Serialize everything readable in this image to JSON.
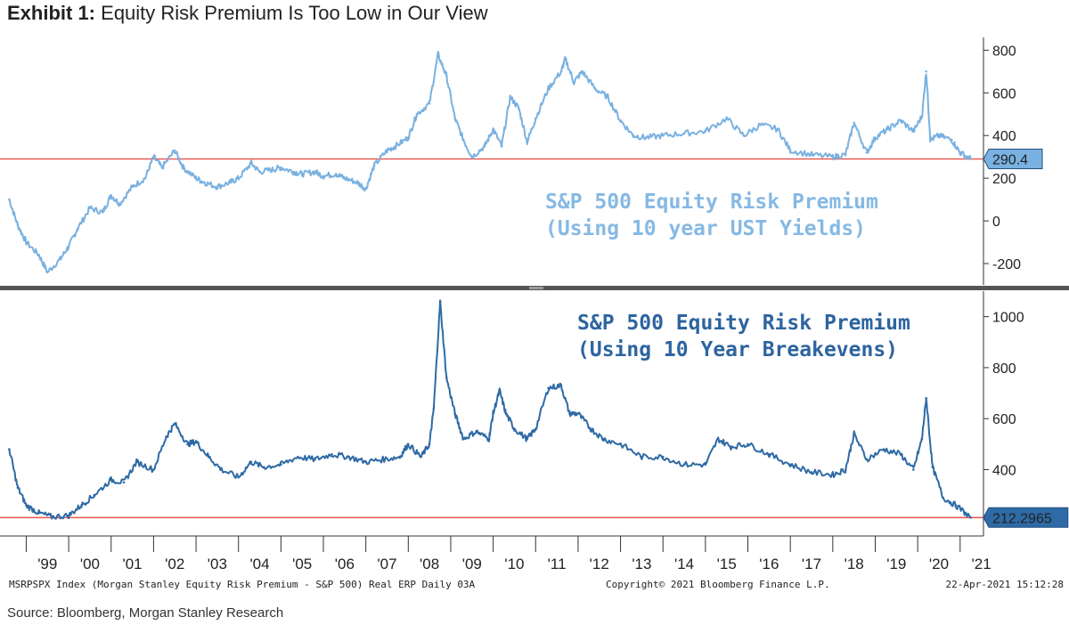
{
  "exhibit_label": "Exhibit 1:",
  "title": "Equity Risk Premium Is Too Low in Our View",
  "chart_data": [
    {
      "type": "line",
      "title_lines": [
        "S&P 500 Equity Risk Premium",
        "(Using 10 year UST Yields)"
      ],
      "series": [
        {
          "name": "S&P 500 Equity Risk Premium (Using 10 year UST Yields)",
          "color": "#79b1e0",
          "x": [
            1998.6,
            1998.8,
            1999.0,
            1999.3,
            1999.5,
            1999.8,
            2000.0,
            2000.2,
            2000.5,
            2000.8,
            2001.0,
            2001.2,
            2001.5,
            2001.8,
            2002.0,
            2002.2,
            2002.5,
            2002.7,
            2003.0,
            2003.2,
            2003.5,
            2003.8,
            2004.0,
            2004.3,
            2004.5,
            2004.8,
            2005.0,
            2005.3,
            2005.5,
            2005.8,
            2006.0,
            2006.3,
            2006.5,
            2006.8,
            2007.0,
            2007.2,
            2007.5,
            2007.7,
            2008.0,
            2008.2,
            2008.5,
            2008.7,
            2008.9,
            2009.1,
            2009.3,
            2009.5,
            2009.8,
            2010.0,
            2010.2,
            2010.4,
            2010.6,
            2010.8,
            2011.0,
            2011.3,
            2011.6,
            2011.7,
            2011.9,
            2012.1,
            2012.4,
            2012.7,
            2013.0,
            2013.3,
            2013.6,
            2014.0,
            2014.5,
            2015.0,
            2015.5,
            2015.9,
            2016.3,
            2016.7,
            2017.0,
            2017.5,
            2018.0,
            2018.3,
            2018.5,
            2018.8,
            2019.0,
            2019.3,
            2019.6,
            2019.9,
            2020.1,
            2020.2,
            2020.3,
            2020.5,
            2020.8,
            2021.0,
            2021.25
          ],
          "values": [
            100,
            -20,
            -100,
            -160,
            -240,
            -180,
            -120,
            -40,
            60,
            40,
            120,
            80,
            160,
            200,
            300,
            250,
            330,
            250,
            200,
            180,
            160,
            180,
            200,
            270,
            230,
            240,
            250,
            230,
            220,
            230,
            210,
            220,
            200,
            180,
            150,
            260,
            330,
            350,
            390,
            500,
            550,
            780,
            680,
            480,
            380,
            300,
            350,
            430,
            350,
            580,
            530,
            370,
            480,
            620,
            700,
            760,
            650,
            700,
            620,
            580,
            470,
            400,
            390,
            400,
            410,
            420,
            480,
            400,
            450,
            430,
            330,
            310,
            300,
            310,
            460,
            320,
            390,
            430,
            470,
            420,
            490,
            700,
            380,
            400,
            380,
            320,
            290.4
          ]
        }
      ],
      "yticks": [
        800,
        600,
        400,
        200,
        0,
        -200
      ],
      "ylim": [
        -300,
        860
      ],
      "reference_line": 290,
      "last_value_label": "290.4"
    },
    {
      "type": "line",
      "title_lines": [
        "S&P 500 Equity Risk Premium",
        "(Using 10 Year Breakevens)"
      ],
      "series": [
        {
          "name": "S&P 500 Equity Risk Premium (Using 10 Year Breakevens)",
          "color": "#2e6aa5",
          "x": [
            1998.6,
            1998.8,
            1999.0,
            1999.3,
            1999.6,
            2000.0,
            2000.3,
            2000.6,
            2001.0,
            2001.3,
            2001.6,
            2002.0,
            2002.3,
            2002.5,
            2002.8,
            2003.0,
            2003.3,
            2003.6,
            2004.0,
            2004.3,
            2004.6,
            2005.0,
            2005.4,
            2005.8,
            2006.2,
            2006.6,
            2007.0,
            2007.4,
            2007.8,
            2008.0,
            2008.3,
            2008.5,
            2008.6,
            2008.75,
            2008.9,
            2009.1,
            2009.3,
            2009.6,
            2009.9,
            2010.0,
            2010.15,
            2010.3,
            2010.5,
            2010.8,
            2011.0,
            2011.3,
            2011.6,
            2011.8,
            2012.0,
            2012.3,
            2012.6,
            2013.0,
            2013.5,
            2014.0,
            2014.5,
            2015.0,
            2015.3,
            2015.6,
            2016.0,
            2016.5,
            2017.0,
            2017.5,
            2018.0,
            2018.3,
            2018.5,
            2018.8,
            2019.2,
            2019.6,
            2019.9,
            2020.1,
            2020.2,
            2020.35,
            2020.6,
            2020.9,
            2021.25
          ],
          "values": [
            480,
            330,
            260,
            230,
            215,
            220,
            260,
            300,
            360,
            350,
            430,
            400,
            530,
            580,
            500,
            510,
            450,
            400,
            370,
            430,
            410,
            420,
            450,
            440,
            460,
            450,
            430,
            440,
            450,
            500,
            450,
            500,
            640,
            1060,
            760,
            620,
            520,
            550,
            520,
            620,
            710,
            620,
            560,
            520,
            560,
            720,
            730,
            620,
            620,
            560,
            520,
            500,
            450,
            450,
            420,
            420,
            520,
            490,
            500,
            460,
            420,
            390,
            380,
            400,
            540,
            440,
            480,
            460,
            400,
            520,
            680,
            410,
            290,
            260,
            212.3
          ]
        }
      ],
      "yticks": [
        1000,
        800,
        600,
        400
      ],
      "ylim": [
        140,
        1100
      ],
      "reference_line": 212,
      "last_value_label": "212.2965"
    }
  ],
  "x_axis": {
    "labels": [
      "'99",
      "'00",
      "'01",
      "'02",
      "'03",
      "'04",
      "'05",
      "'06",
      "'07",
      "'08",
      "'09",
      "'10",
      "'11",
      "'12",
      "'13",
      "'14",
      "'15",
      "'16",
      "'17",
      "'18",
      "'19",
      "'20",
      "'21"
    ],
    "xlim": [
      1998.55,
      2021.55
    ]
  },
  "footer_left": "MSRPSPX Index (Morgan Stanley Equity Risk Premium - S&P 500) Real ERP  Daily 03A",
  "footer_mid": "Copyright© 2021 Bloomberg Finance L.P.",
  "footer_right": "22-Apr-2021 15:12:28",
  "source": "Source: Bloomberg, Morgan Stanley Research",
  "colors": {
    "reference_line": "#e8534a",
    "divider": "#555555",
    "upper_line": "#79b1e0",
    "lower_line": "#2e6aa5",
    "upper_title": "#86b9e4",
    "lower_title": "#2d64a0"
  }
}
